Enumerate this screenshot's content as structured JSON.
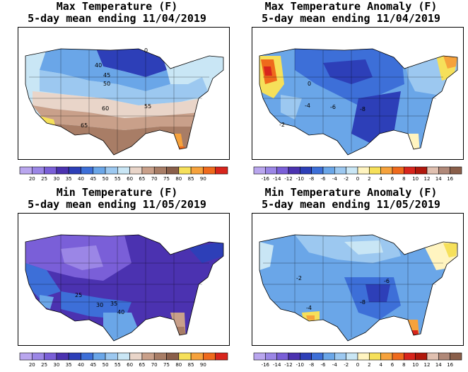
{
  "panels": [
    {
      "id": "max-temp",
      "title_line1": "Max Temperature (F)",
      "title_line2": "5-day mean ending 11/04/2019",
      "contour_labels": [
        "40",
        "45",
        "50",
        "60",
        "55",
        "65",
        "0"
      ],
      "colorbar": {
        "colors": [
          "#b9a6ee",
          "#9b86e6",
          "#7a5fd8",
          "#4b32b0",
          "#2d3fb8",
          "#3d6fd8",
          "#6aa6e8",
          "#9cc8f0",
          "#c9e6f5",
          "#e9d5c9",
          "#c9a08a",
          "#a87d66",
          "#8a5f4a",
          "#f6e05a",
          "#f6a23c",
          "#ef6a1c",
          "#d8251c"
        ],
        "labels": [
          "20",
          "25",
          "30",
          "35",
          "40",
          "45",
          "50",
          "55",
          "60",
          "65",
          "70",
          "75",
          "80",
          "85",
          "90"
        ]
      }
    },
    {
      "id": "max-temp-anomaly",
      "title_line1": "Max Temperature Anomaly (F)",
      "title_line2": "5-day mean ending 11/04/2019",
      "contour_labels": [
        "0",
        "-6",
        "-8",
        "-2",
        "-4"
      ],
      "colorbar": {
        "colors": [
          "#b9a6ee",
          "#9b86e6",
          "#7a5fd8",
          "#4b32b0",
          "#2d3fb8",
          "#3d6fd8",
          "#6aa6e8",
          "#9cc8f0",
          "#c9e6f5",
          "#fff4c0",
          "#f6e05a",
          "#f6a23c",
          "#ef6a1c",
          "#d8251c",
          "#b0180c",
          "#e0c0b0",
          "#b08878",
          "#8a5f4a"
        ],
        "labels": [
          "-16",
          "-14",
          "-12",
          "-10",
          "-8",
          "-6",
          "-4",
          "-2",
          "0",
          "2",
          "4",
          "6",
          "8",
          "10",
          "12",
          "14",
          "16"
        ]
      }
    },
    {
      "id": "min-temp",
      "title_line1": "Min Temperature (F)",
      "title_line2": "5-day mean ending 11/05/2019",
      "contour_labels": [
        "25",
        "30",
        "35",
        "40"
      ],
      "colorbar": {
        "colors": [
          "#b9a6ee",
          "#9b86e6",
          "#7a5fd8",
          "#4b32b0",
          "#2d3fb8",
          "#3d6fd8",
          "#6aa6e8",
          "#9cc8f0",
          "#c9e6f5",
          "#e9d5c9",
          "#c9a08a",
          "#a87d66",
          "#8a5f4a",
          "#f6e05a",
          "#f6a23c",
          "#ef6a1c",
          "#d8251c"
        ],
        "labels": [
          "20",
          "25",
          "30",
          "35",
          "40",
          "45",
          "50",
          "55",
          "60",
          "65",
          "70",
          "75",
          "80",
          "85",
          "90"
        ]
      }
    },
    {
      "id": "min-temp-anomaly",
      "title_line1": "Min Temperature Anomaly (F)",
      "title_line2": "5-day mean ending 11/05/2019",
      "contour_labels": [
        "-2",
        "-4",
        "-6",
        "-8"
      ],
      "colorbar": {
        "colors": [
          "#b9a6ee",
          "#9b86e6",
          "#7a5fd8",
          "#4b32b0",
          "#2d3fb8",
          "#3d6fd8",
          "#6aa6e8",
          "#9cc8f0",
          "#c9e6f5",
          "#fff4c0",
          "#f6e05a",
          "#f6a23c",
          "#ef6a1c",
          "#d8251c",
          "#b0180c",
          "#e0c0b0",
          "#b08878",
          "#8a5f4a"
        ],
        "labels": [
          "-16",
          "-14",
          "-12",
          "-10",
          "-8",
          "-6",
          "-4",
          "-2",
          "0",
          "2",
          "4",
          "6",
          "8",
          "10",
          "12",
          "14",
          "16"
        ]
      }
    }
  ]
}
